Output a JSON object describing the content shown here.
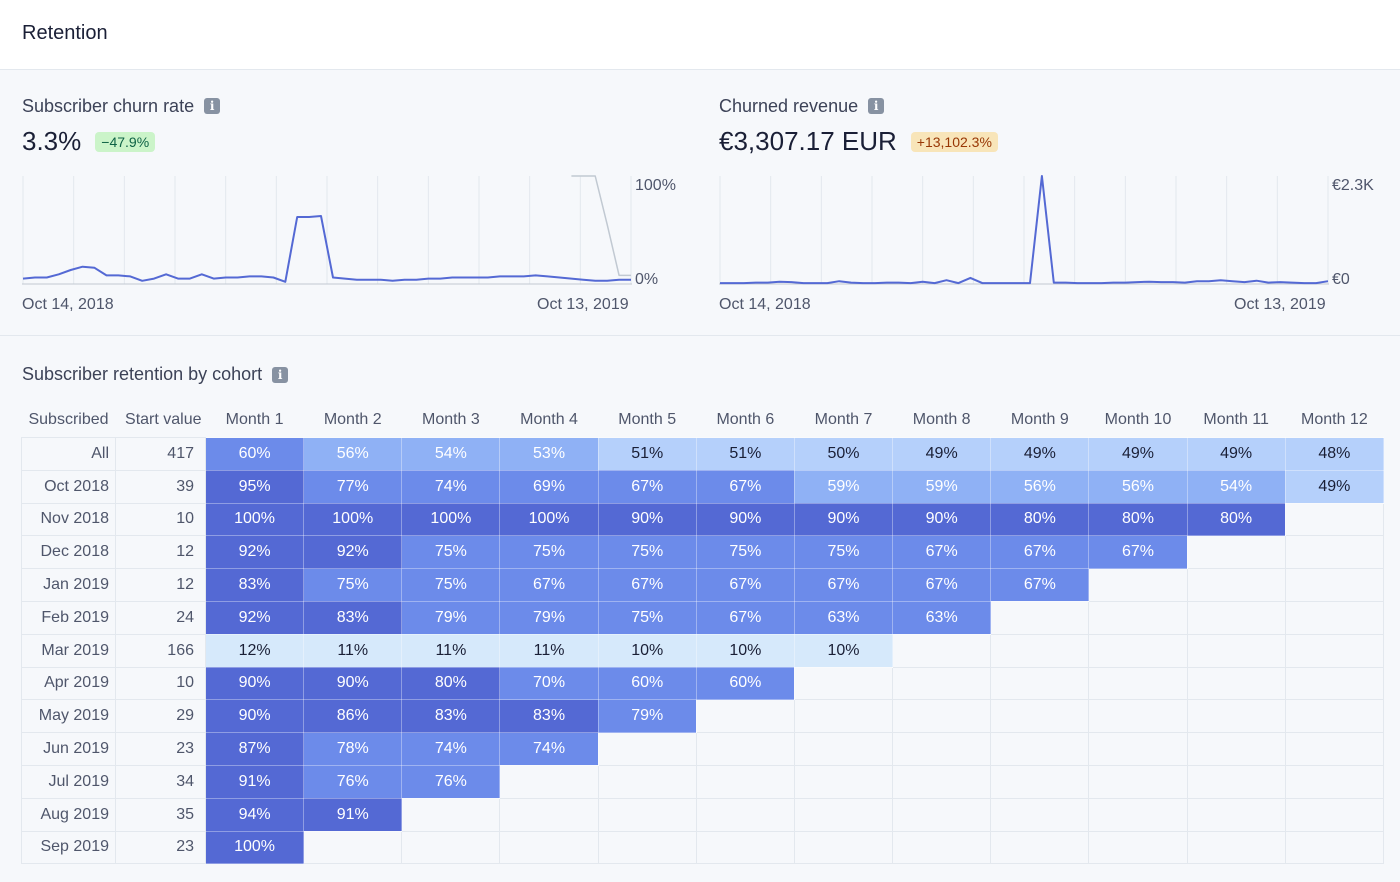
{
  "page": {
    "title": "Retention"
  },
  "churn_rate": {
    "title": "Subscriber churn rate",
    "value": "3.3%",
    "change": "−47.9%",
    "y_max_label": "100%",
    "y_min_label": "0%",
    "x_start_label": "Oct 14, 2018",
    "x_end_label": "Oct 13, 2019"
  },
  "churned_revenue": {
    "title": "Churned revenue",
    "value": "€3,307.17 EUR",
    "change": "+13,102.3%",
    "y_max_label": "€2.3K",
    "y_min_label": "€0",
    "x_start_label": "Oct 14, 2018",
    "x_end_label": "Oct 13, 2019"
  },
  "chart_data": [
    {
      "type": "line",
      "title": "Subscriber churn rate",
      "ylim": [
        0,
        100
      ],
      "x_start": "Oct 14, 2018",
      "x_end": "Oct 13, 2019",
      "series": [
        {
          "name": "current",
          "values": [
            5,
            6,
            6,
            9,
            13,
            16,
            15,
            8,
            8,
            7,
            3,
            5,
            9,
            5,
            5,
            9,
            5,
            6,
            6,
            7,
            7,
            6,
            2,
            62,
            62,
            63,
            6,
            5,
            4,
            4,
            4,
            3,
            4,
            4,
            5,
            5,
            6,
            6,
            6,
            6,
            7,
            7,
            7,
            8,
            7,
            6,
            5,
            4,
            3,
            3,
            4,
            4
          ]
        },
        {
          "name": "previous",
          "values": [
            null,
            null,
            null,
            null,
            null,
            null,
            null,
            null,
            null,
            null,
            null,
            null,
            null,
            null,
            null,
            null,
            null,
            null,
            null,
            null,
            null,
            null,
            null,
            null,
            null,
            null,
            null,
            null,
            null,
            null,
            null,
            null,
            null,
            null,
            null,
            null,
            null,
            null,
            null,
            null,
            null,
            null,
            null,
            null,
            null,
            null,
            100,
            100,
            100,
            55,
            8,
            8
          ]
        }
      ]
    },
    {
      "type": "line",
      "title": "Churned revenue",
      "ylim": [
        0,
        2300
      ],
      "x_start": "Oct 14, 2018",
      "x_end": "Oct 13, 2019",
      "series": [
        {
          "name": "current",
          "values": [
            20,
            20,
            20,
            30,
            30,
            50,
            40,
            20,
            20,
            20,
            60,
            30,
            20,
            20,
            30,
            30,
            20,
            50,
            20,
            80,
            20,
            130,
            20,
            20,
            20,
            20,
            20,
            2300,
            30,
            30,
            20,
            20,
            20,
            30,
            30,
            40,
            50,
            40,
            40,
            30,
            60,
            60,
            80,
            60,
            40,
            70,
            30,
            40,
            30,
            20,
            20,
            60
          ]
        }
      ]
    }
  ],
  "cohort": {
    "title": "Subscriber retention by cohort",
    "headers": [
      "Subscribed",
      "Start value",
      "Month 1",
      "Month 2",
      "Month 3",
      "Month 4",
      "Month 5",
      "Month 6",
      "Month 7",
      "Month 8",
      "Month 9",
      "Month 10",
      "Month 11",
      "Month 12"
    ],
    "rows": [
      {
        "label": "All",
        "start": "417",
        "values": [
          "60%",
          "56%",
          "54%",
          "53%",
          "51%",
          "51%",
          "50%",
          "49%",
          "49%",
          "49%",
          "49%",
          "48%"
        ]
      },
      {
        "label": "Oct 2018",
        "start": "39",
        "values": [
          "95%",
          "77%",
          "74%",
          "69%",
          "67%",
          "67%",
          "59%",
          "59%",
          "56%",
          "56%",
          "54%",
          "49%"
        ]
      },
      {
        "label": "Nov 2018",
        "start": "10",
        "values": [
          "100%",
          "100%",
          "100%",
          "100%",
          "90%",
          "90%",
          "90%",
          "90%",
          "80%",
          "80%",
          "80%"
        ]
      },
      {
        "label": "Dec 2018",
        "start": "12",
        "values": [
          "92%",
          "92%",
          "75%",
          "75%",
          "75%",
          "75%",
          "75%",
          "67%",
          "67%",
          "67%"
        ]
      },
      {
        "label": "Jan 2019",
        "start": "12",
        "values": [
          "83%",
          "75%",
          "75%",
          "67%",
          "67%",
          "67%",
          "67%",
          "67%",
          "67%"
        ]
      },
      {
        "label": "Feb 2019",
        "start": "24",
        "values": [
          "92%",
          "83%",
          "79%",
          "79%",
          "75%",
          "67%",
          "63%",
          "63%"
        ]
      },
      {
        "label": "Mar 2019",
        "start": "166",
        "values": [
          "12%",
          "11%",
          "11%",
          "11%",
          "10%",
          "10%",
          "10%"
        ]
      },
      {
        "label": "Apr 2019",
        "start": "10",
        "values": [
          "90%",
          "90%",
          "80%",
          "70%",
          "60%",
          "60%"
        ]
      },
      {
        "label": "May 2019",
        "start": "29",
        "values": [
          "90%",
          "86%",
          "83%",
          "83%",
          "79%"
        ]
      },
      {
        "label": "Jun 2019",
        "start": "23",
        "values": [
          "87%",
          "78%",
          "74%",
          "74%"
        ]
      },
      {
        "label": "Jul 2019",
        "start": "34",
        "values": [
          "91%",
          "76%",
          "76%"
        ]
      },
      {
        "label": "Aug 2019",
        "start": "35",
        "values": [
          "94%",
          "91%"
        ]
      },
      {
        "label": "Sep 2019",
        "start": "23",
        "values": [
          "100%"
        ]
      }
    ]
  },
  "colors": {
    "line_current": "#5469d4",
    "line_previous": "#c1c9d2",
    "grid": "#e3e8ee",
    "shade_darkest": "#5469d4",
    "shade_dark": "#6c8bea",
    "shade_mid": "#8fb1f5",
    "shade_light": "#b5d0fb",
    "shade_lightest": "#d6e9fb"
  }
}
